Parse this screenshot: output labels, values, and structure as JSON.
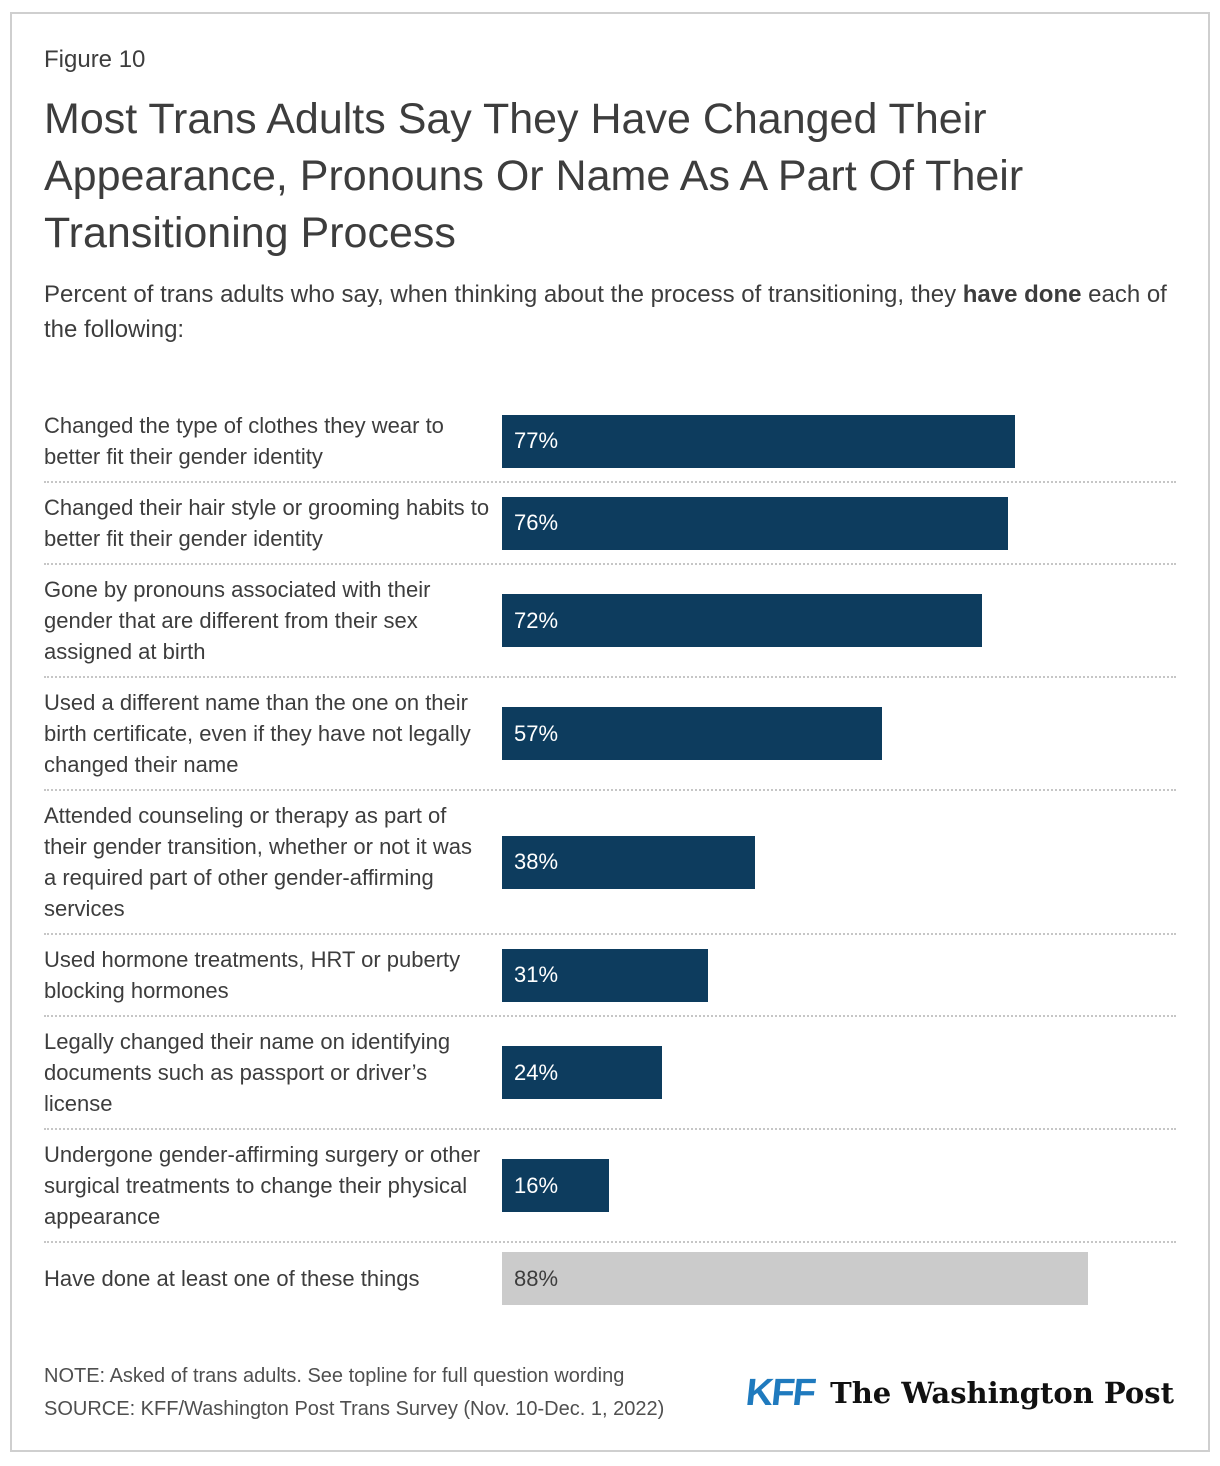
{
  "figure_label": "Figure 10",
  "title": "Most Trans Adults Say They Have Changed Their Appearance, Pronouns Or Name As A Part Of Their Transitioning Process",
  "subtitle": {
    "prefix": "Percent of trans adults who say, when thinking about the process of transitioning, they ",
    "bold": "have done",
    "suffix": " each of the following:"
  },
  "chart_data": {
    "type": "bar",
    "orientation": "horizontal",
    "xlim": [
      0,
      100
    ],
    "unit": "percent",
    "grid": false,
    "legend": "none",
    "value_label_position": "inside-left",
    "categories": [
      "Changed the type of clothes they wear to better fit their gender identity",
      "Changed their hair style or grooming habits to better fit their gender identity",
      "Gone by pronouns associated with their gender that are different from their sex assigned at birth",
      "Used a different name than the one on their birth certificate, even if they have not legally changed their name",
      "Attended counseling or therapy as part of their gender transition, whether or not it was a required part of other gender-affirming services",
      "Used hormone treatments, HRT or puberty blocking hormones",
      "Legally changed their name on identifying documents such as passport or driver’s license",
      "Undergone gender-affirming surgery or other surgical treatments to change their physical appearance",
      "Have done at least one of these things"
    ],
    "values": [
      77,
      76,
      72,
      57,
      38,
      31,
      24,
      16,
      88
    ],
    "value_labels": [
      "77%",
      "76%",
      "72%",
      "57%",
      "38%",
      "31%",
      "24%",
      "16%",
      "88%"
    ],
    "bar_variants": [
      "navy",
      "navy",
      "navy",
      "navy",
      "navy",
      "navy",
      "navy",
      "navy",
      "gray"
    ]
  },
  "colors": {
    "bar_navy": "#0d3c5e",
    "bar_gray": "#cbcbcb",
    "value_text_on_navy": "#ffffff",
    "value_text_on_gray": "#3d3d3d",
    "text": "#3d3d3d",
    "note_text": "#4f4f4f",
    "kff_blue": "#1f7abe",
    "card_border": "#cfcfcf",
    "row_divider": "#c6c6c6"
  },
  "footer": {
    "note": "NOTE: Asked of trans adults. See topline for full question wording",
    "source": "SOURCE: KFF/Washington Post Trans Survey (Nov. 10-Dec. 1, 2022)",
    "logo_kff": "KFF",
    "logo_wapo": "The Washington Post"
  }
}
